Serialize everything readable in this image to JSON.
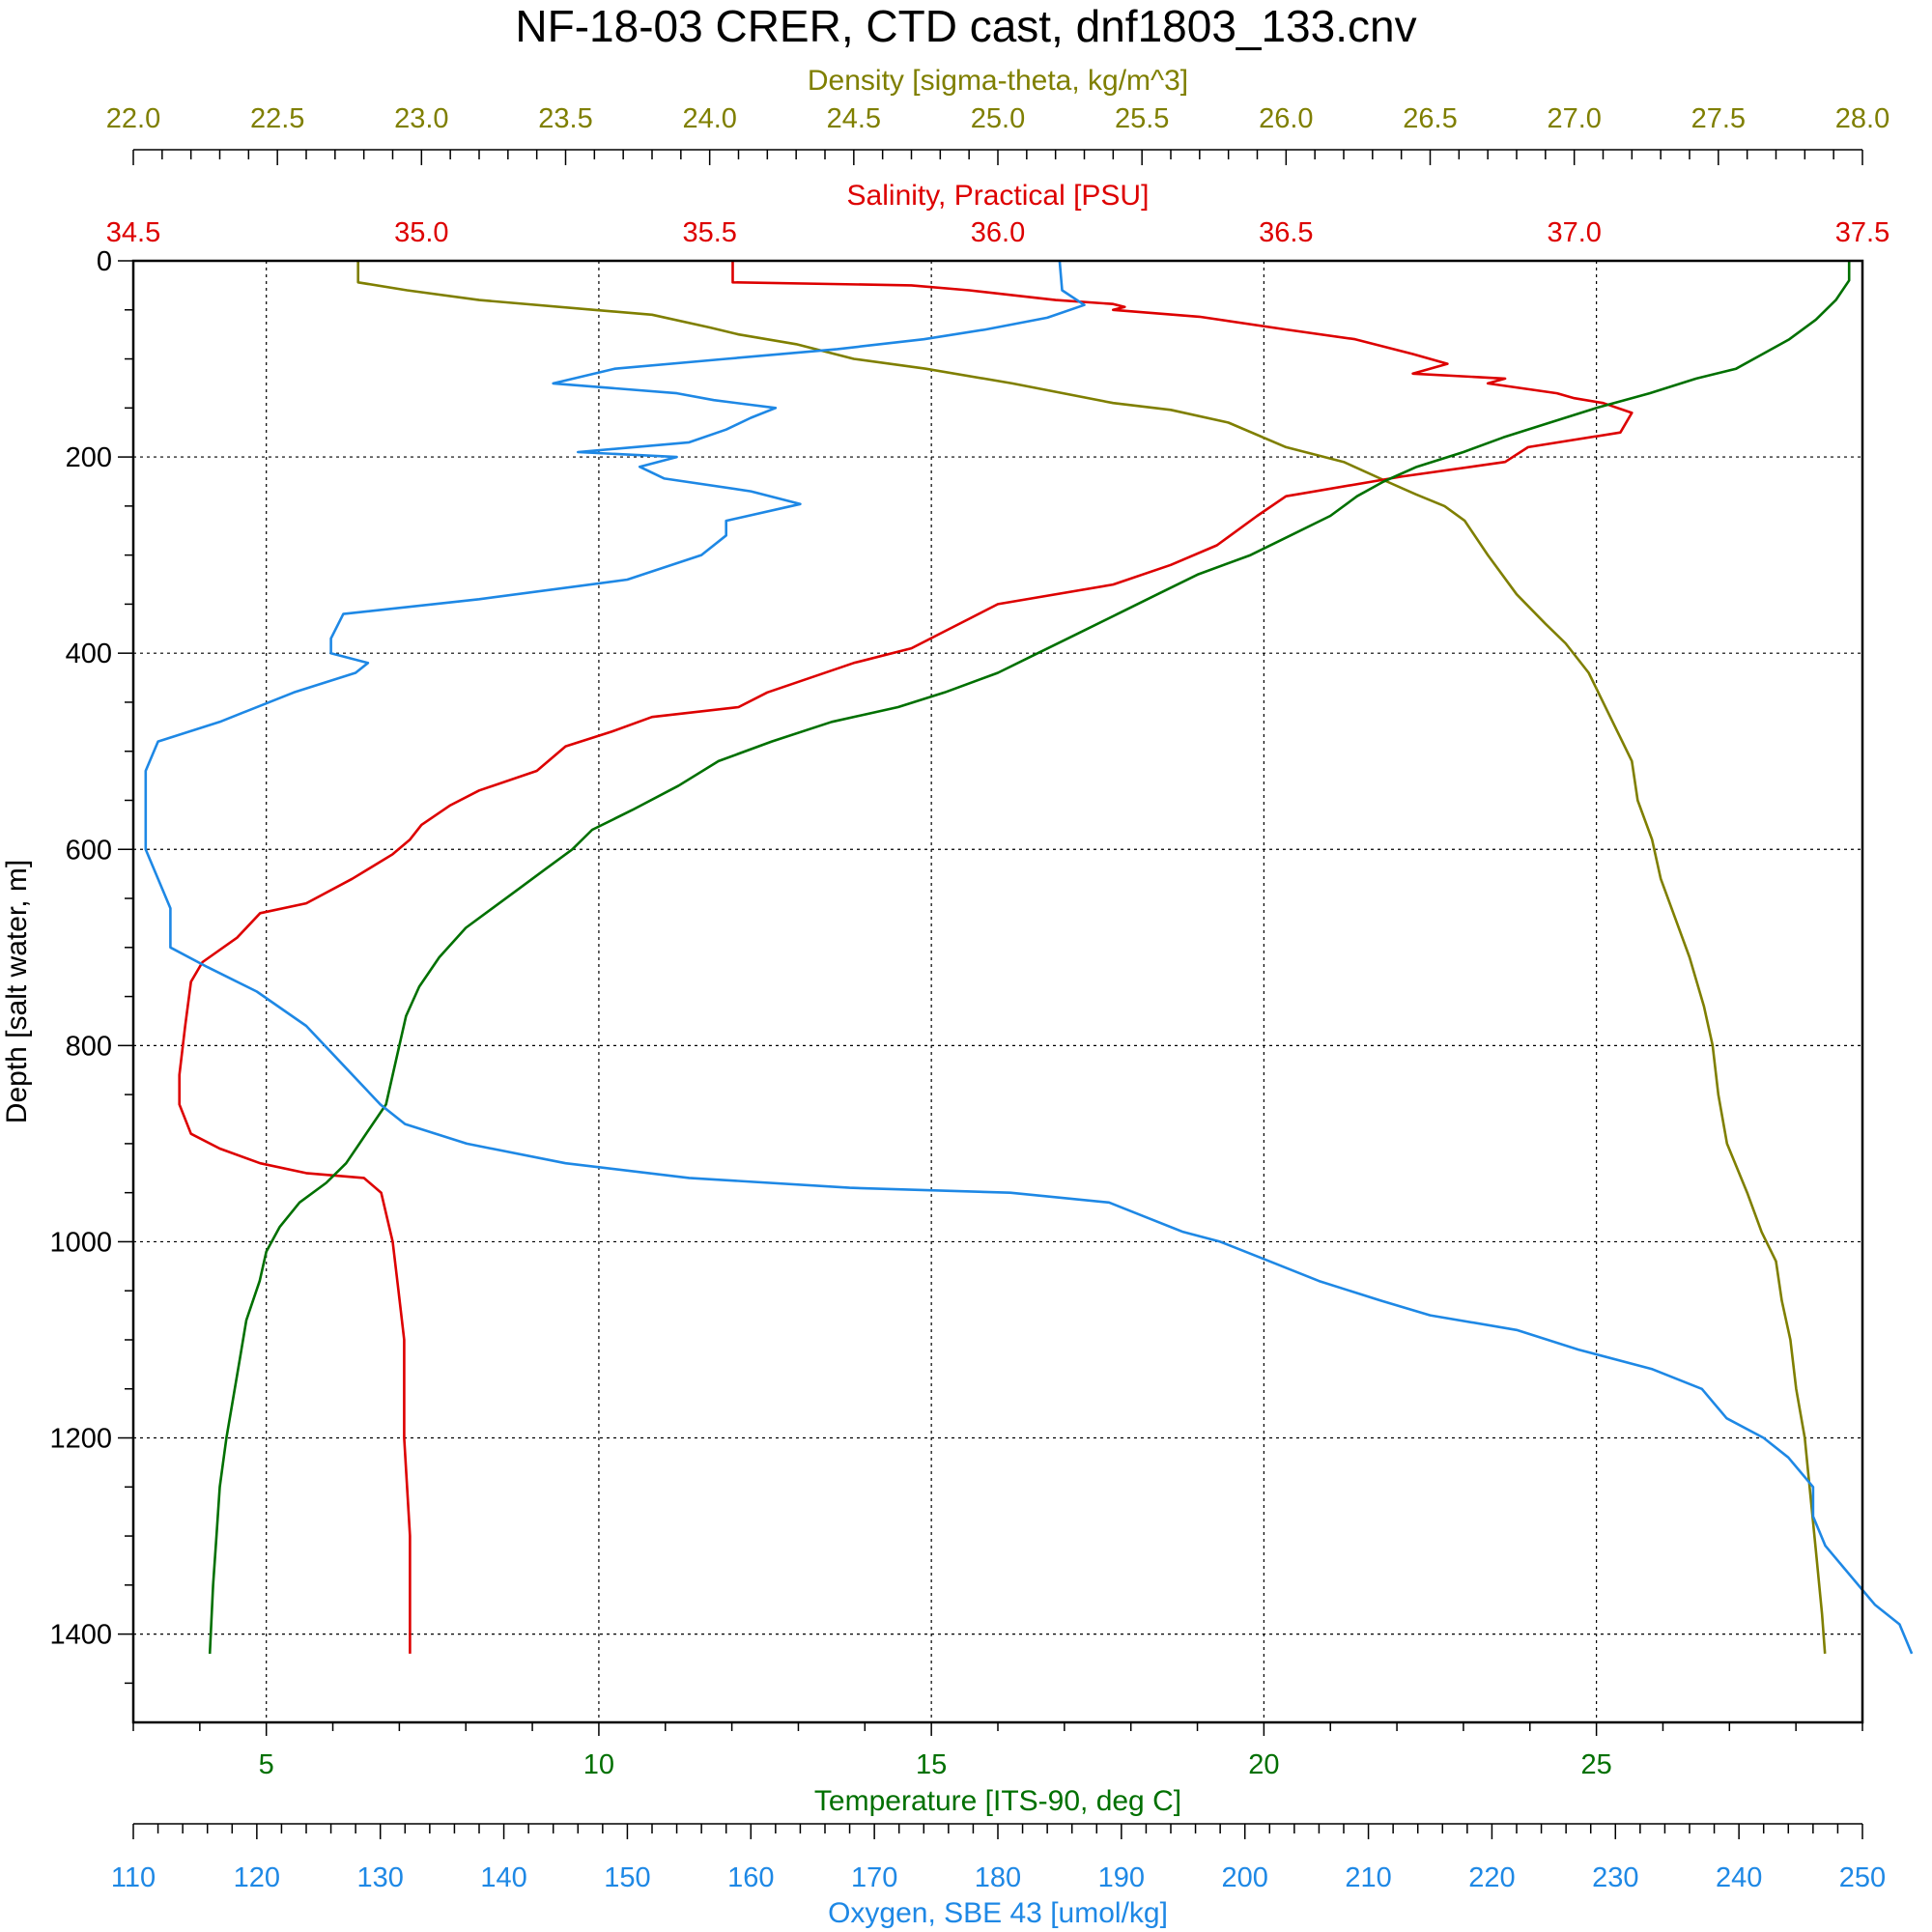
{
  "chart_data": {
    "type": "line",
    "title": "NF-18-03 CRER, CTD cast, dnf1803_133.cnv",
    "grid": true,
    "y_axis": {
      "label": "Depth [salt water, m]",
      "range": [
        0,
        1490
      ],
      "inverted": true,
      "ticks": [
        0,
        200,
        400,
        600,
        800,
        1000,
        1200,
        1400
      ],
      "tick_labels": [
        "0",
        "200",
        "400",
        "600",
        "800",
        "1000",
        "1200",
        "1400"
      ]
    },
    "x_axes": [
      {
        "id": "density",
        "position": "top-outer",
        "color": "#7f7f00",
        "label": "Density [sigma-theta, kg/m^3]",
        "range": [
          22.0,
          28.0
        ],
        "ticks": [
          22.0,
          22.5,
          23.0,
          23.5,
          24.0,
          24.5,
          25.0,
          25.5,
          26.0,
          26.5,
          27.0,
          27.5,
          28.0
        ],
        "tick_labels": [
          "22.0",
          "22.5",
          "23.0",
          "23.5",
          "24.0",
          "24.5",
          "25.0",
          "25.5",
          "26.0",
          "26.5",
          "27.0",
          "27.5",
          "28.0"
        ]
      },
      {
        "id": "salinity",
        "position": "top-inner",
        "color": "#dd0000",
        "label": "Salinity, Practical [PSU]",
        "range": [
          34.5,
          37.5
        ],
        "ticks": [
          34.5,
          35.0,
          35.5,
          36.0,
          36.5,
          37.0,
          37.5
        ],
        "tick_labels": [
          "34.5",
          "35.0",
          "35.5",
          "36.0",
          "36.5",
          "37.0",
          "37.5"
        ]
      },
      {
        "id": "temperature",
        "position": "bottom-inner",
        "color": "#007000",
        "label": "Temperature [ITS-90, deg C]",
        "range": [
          3.0,
          29.0
        ],
        "ticks": [
          5,
          10,
          15,
          20,
          25
        ],
        "tick_labels": [
          "5",
          "10",
          "15",
          "20",
          "25"
        ]
      },
      {
        "id": "oxygen",
        "position": "bottom-outer",
        "color": "#1e88e5",
        "label": "Oxygen, SBE 43 [umol/kg]",
        "range": [
          110,
          250
        ],
        "ticks": [
          110,
          120,
          130,
          140,
          150,
          160,
          170,
          180,
          190,
          200,
          210,
          220,
          230,
          240,
          250
        ],
        "tick_labels": [
          "110",
          "120",
          "130",
          "140",
          "150",
          "160",
          "170",
          "180",
          "190",
          "200",
          "210",
          "220",
          "230",
          "240",
          "250"
        ]
      }
    ],
    "series": [
      {
        "id": "density",
        "axis": "density",
        "color": "#7f7f00",
        "points": [
          [
            22.78,
            0
          ],
          [
            22.78,
            22
          ],
          [
            22.95,
            30
          ],
          [
            23.2,
            40
          ],
          [
            23.6,
            50
          ],
          [
            23.8,
            55
          ],
          [
            24.0,
            68
          ],
          [
            24.1,
            75
          ],
          [
            24.3,
            85
          ],
          [
            24.5,
            100
          ],
          [
            24.75,
            110
          ],
          [
            25.05,
            125
          ],
          [
            25.4,
            145
          ],
          [
            25.6,
            152
          ],
          [
            25.8,
            165
          ],
          [
            26.0,
            190
          ],
          [
            26.2,
            205
          ],
          [
            26.35,
            225
          ],
          [
            26.45,
            238
          ],
          [
            26.55,
            250
          ],
          [
            26.62,
            265
          ],
          [
            26.7,
            300
          ],
          [
            26.8,
            340
          ],
          [
            26.9,
            370
          ],
          [
            26.97,
            390
          ],
          [
            27.05,
            420
          ],
          [
            27.1,
            450
          ],
          [
            27.15,
            480
          ],
          [
            27.2,
            510
          ],
          [
            27.22,
            550
          ],
          [
            27.27,
            590
          ],
          [
            27.3,
            630
          ],
          [
            27.35,
            670
          ],
          [
            27.4,
            710
          ],
          [
            27.45,
            760
          ],
          [
            27.48,
            800
          ],
          [
            27.5,
            850
          ],
          [
            27.53,
            900
          ],
          [
            27.6,
            950
          ],
          [
            27.65,
            990
          ],
          [
            27.7,
            1020
          ],
          [
            27.72,
            1060
          ],
          [
            27.75,
            1100
          ],
          [
            27.77,
            1150
          ],
          [
            27.8,
            1200
          ],
          [
            27.82,
            1260
          ],
          [
            27.84,
            1320
          ],
          [
            27.86,
            1380
          ],
          [
            27.87,
            1420
          ]
        ]
      },
      {
        "id": "salinity",
        "axis": "salinity",
        "color": "#dd0000",
        "points": [
          [
            35.54,
            0
          ],
          [
            35.54,
            22
          ],
          [
            35.85,
            25
          ],
          [
            35.95,
            30
          ],
          [
            36.1,
            40
          ],
          [
            36.2,
            44
          ],
          [
            36.22,
            47
          ],
          [
            36.2,
            50
          ],
          [
            36.35,
            57
          ],
          [
            36.5,
            70
          ],
          [
            36.62,
            80
          ],
          [
            36.72,
            95
          ],
          [
            36.78,
            105
          ],
          [
            36.72,
            115
          ],
          [
            36.88,
            120
          ],
          [
            36.85,
            125
          ],
          [
            36.97,
            135
          ],
          [
            37.0,
            140
          ],
          [
            37.05,
            145
          ],
          [
            37.1,
            155
          ],
          [
            37.08,
            175
          ],
          [
            36.92,
            190
          ],
          [
            36.88,
            205
          ],
          [
            36.7,
            220
          ],
          [
            36.5,
            240
          ],
          [
            36.45,
            260
          ],
          [
            36.38,
            290
          ],
          [
            36.3,
            310
          ],
          [
            36.2,
            330
          ],
          [
            36.0,
            350
          ],
          [
            35.95,
            365
          ],
          [
            35.9,
            380
          ],
          [
            35.85,
            395
          ],
          [
            35.75,
            410
          ],
          [
            35.6,
            440
          ],
          [
            35.55,
            455
          ],
          [
            35.4,
            465
          ],
          [
            35.33,
            480
          ],
          [
            35.25,
            495
          ],
          [
            35.2,
            520
          ],
          [
            35.1,
            540
          ],
          [
            35.05,
            555
          ],
          [
            35.0,
            575
          ],
          [
            34.98,
            590
          ],
          [
            34.95,
            605
          ],
          [
            34.88,
            630
          ],
          [
            34.8,
            655
          ],
          [
            34.72,
            665
          ],
          [
            34.68,
            690
          ],
          [
            34.62,
            715
          ],
          [
            34.6,
            735
          ],
          [
            34.59,
            780
          ],
          [
            34.58,
            830
          ],
          [
            34.58,
            860
          ],
          [
            34.6,
            890
          ],
          [
            34.65,
            905
          ],
          [
            34.72,
            920
          ],
          [
            34.8,
            930
          ],
          [
            34.9,
            935
          ],
          [
            34.93,
            950
          ],
          [
            34.95,
            1000
          ],
          [
            34.96,
            1050
          ],
          [
            34.97,
            1100
          ],
          [
            34.97,
            1150
          ],
          [
            34.97,
            1200
          ],
          [
            34.98,
            1300
          ],
          [
            34.98,
            1420
          ]
        ]
      },
      {
        "id": "temperature",
        "axis": "temperature",
        "color": "#007000",
        "points": [
          [
            28.8,
            0
          ],
          [
            28.8,
            20
          ],
          [
            28.6,
            40
          ],
          [
            28.3,
            60
          ],
          [
            27.9,
            80
          ],
          [
            27.5,
            95
          ],
          [
            27.1,
            110
          ],
          [
            26.5,
            120
          ],
          [
            25.8,
            135
          ],
          [
            25.0,
            150
          ],
          [
            24.3,
            165
          ],
          [
            23.6,
            180
          ],
          [
            23.0,
            195
          ],
          [
            22.3,
            210
          ],
          [
            21.8,
            225
          ],
          [
            21.4,
            240
          ],
          [
            21.0,
            260
          ],
          [
            20.4,
            280
          ],
          [
            19.8,
            300
          ],
          [
            19.0,
            320
          ],
          [
            18.4,
            340
          ],
          [
            17.8,
            360
          ],
          [
            17.2,
            380
          ],
          [
            16.6,
            400
          ],
          [
            16.0,
            420
          ],
          [
            15.2,
            440
          ],
          [
            14.5,
            455
          ],
          [
            13.5,
            470
          ],
          [
            12.6,
            490
          ],
          [
            11.8,
            510
          ],
          [
            11.2,
            535
          ],
          [
            10.5,
            560
          ],
          [
            9.9,
            580
          ],
          [
            9.6,
            600
          ],
          [
            9.2,
            620
          ],
          [
            8.8,
            640
          ],
          [
            8.4,
            660
          ],
          [
            8.0,
            680
          ],
          [
            7.6,
            710
          ],
          [
            7.3,
            740
          ],
          [
            7.1,
            770
          ],
          [
            7.0,
            800
          ],
          [
            6.9,
            830
          ],
          [
            6.8,
            860
          ],
          [
            6.6,
            880
          ],
          [
            6.4,
            900
          ],
          [
            6.2,
            920
          ],
          [
            5.9,
            940
          ],
          [
            5.5,
            960
          ],
          [
            5.2,
            985
          ],
          [
            5.0,
            1010
          ],
          [
            4.9,
            1040
          ],
          [
            4.7,
            1080
          ],
          [
            4.6,
            1120
          ],
          [
            4.5,
            1160
          ],
          [
            4.4,
            1200
          ],
          [
            4.3,
            1250
          ],
          [
            4.25,
            1300
          ],
          [
            4.2,
            1350
          ],
          [
            4.15,
            1420
          ]
        ]
      },
      {
        "id": "oxygen",
        "axis": "oxygen",
        "color": "#1e88e5",
        "points": [
          [
            185,
            0
          ],
          [
            185.2,
            30
          ],
          [
            187,
            45
          ],
          [
            184,
            58
          ],
          [
            179,
            70
          ],
          [
            174,
            80
          ],
          [
            167,
            90
          ],
          [
            158,
            100
          ],
          [
            149,
            110
          ],
          [
            144,
            125
          ],
          [
            154,
            135
          ],
          [
            157,
            142
          ],
          [
            162,
            150
          ],
          [
            160,
            160
          ],
          [
            158,
            172
          ],
          [
            155,
            185
          ],
          [
            146,
            195
          ],
          [
            154,
            200
          ],
          [
            151,
            210
          ],
          [
            153,
            222
          ],
          [
            160,
            235
          ],
          [
            164,
            248
          ],
          [
            158,
            265
          ],
          [
            158,
            280
          ],
          [
            156,
            300
          ],
          [
            150,
            325
          ],
          [
            138,
            345
          ],
          [
            127,
            360
          ],
          [
            126,
            385
          ],
          [
            126,
            400
          ],
          [
            129,
            410
          ],
          [
            128,
            420
          ],
          [
            123,
            440
          ],
          [
            119,
            460
          ],
          [
            117,
            470
          ],
          [
            112,
            490
          ],
          [
            111,
            520
          ],
          [
            111,
            560
          ],
          [
            111,
            600
          ],
          [
            112,
            630
          ],
          [
            113,
            660
          ],
          [
            113,
            700
          ],
          [
            116,
            720
          ],
          [
            120,
            745
          ],
          [
            124,
            780
          ],
          [
            127,
            820
          ],
          [
            130,
            860
          ],
          [
            132,
            880
          ],
          [
            137,
            900
          ],
          [
            145,
            920
          ],
          [
            155,
            935
          ],
          [
            168,
            945
          ],
          [
            181,
            950
          ],
          [
            189,
            960
          ],
          [
            192,
            975
          ],
          [
            195,
            990
          ],
          [
            198,
            1000
          ],
          [
            202,
            1020
          ],
          [
            206,
            1040
          ],
          [
            211,
            1060
          ],
          [
            215,
            1075
          ],
          [
            222,
            1090
          ],
          [
            227,
            1110
          ],
          [
            233,
            1130
          ],
          [
            237,
            1150
          ],
          [
            239,
            1180
          ],
          [
            242,
            1200
          ],
          [
            244,
            1220
          ],
          [
            246,
            1250
          ],
          [
            246,
            1280
          ],
          [
            247,
            1310
          ],
          [
            249,
            1340
          ],
          [
            251,
            1370
          ],
          [
            253,
            1390
          ],
          [
            254,
            1420
          ]
        ]
      }
    ]
  }
}
